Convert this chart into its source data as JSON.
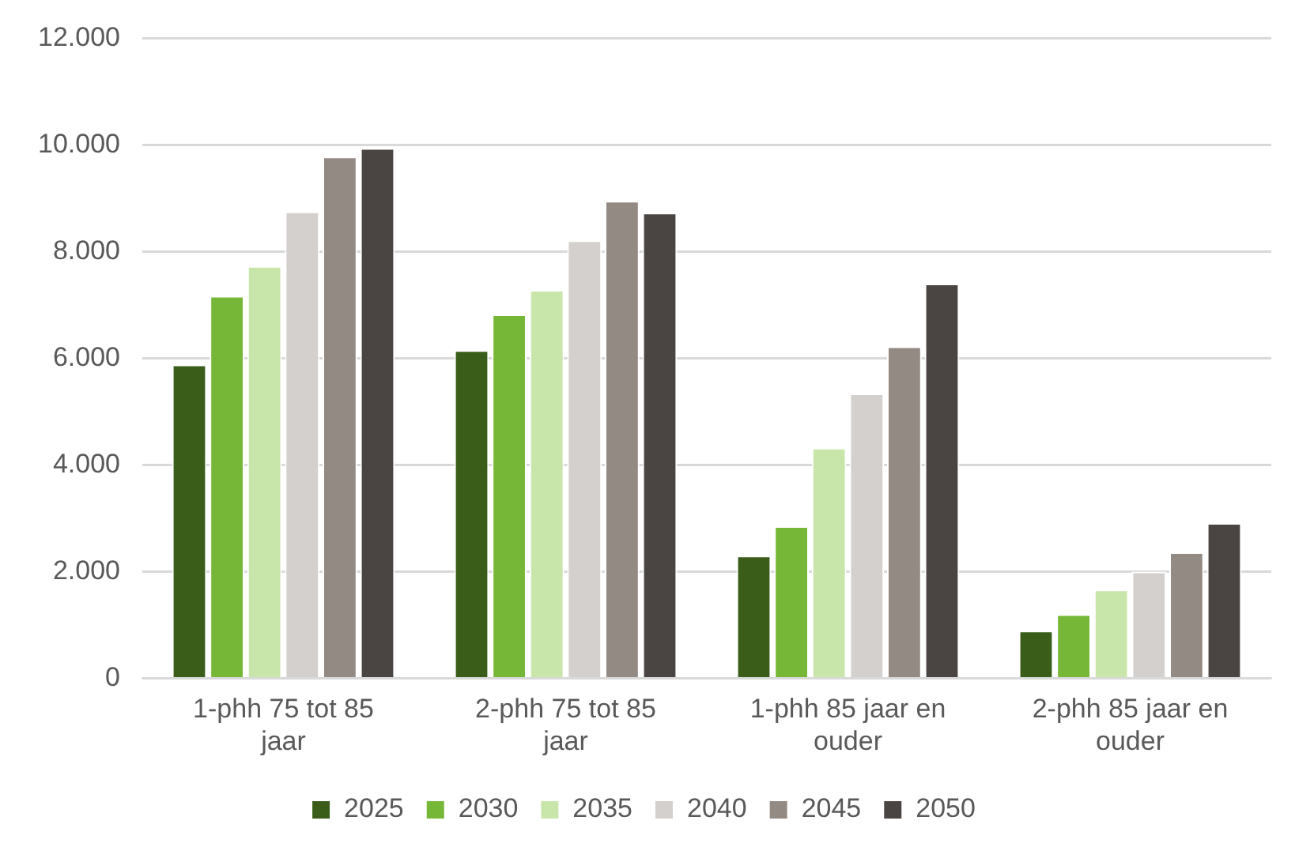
{
  "chart_data": {
    "type": "bar",
    "categories": [
      "1-phh 75 tot 85 jaar",
      "2-phh 75 tot 85 jaar",
      "1-phh 85 jaar en ouder",
      "2-phh 85 jaar en ouder"
    ],
    "series": [
      {
        "name": "2025",
        "color": "#3a5e1a",
        "values": [
          5880,
          6150,
          2300,
          890
        ]
      },
      {
        "name": "2030",
        "color": "#76b737",
        "values": [
          7170,
          6820,
          2850,
          1200
        ]
      },
      {
        "name": "2035",
        "color": "#c9e6aa",
        "values": [
          7730,
          7280,
          4320,
          1660
        ]
      },
      {
        "name": "2040",
        "color": "#d4d0cd",
        "values": [
          8750,
          8210,
          5340,
          2000
        ]
      },
      {
        "name": "2045",
        "color": "#948a84",
        "values": [
          9780,
          8950,
          6220,
          2360
        ]
      },
      {
        "name": "2050",
        "color": "#4a4542",
        "values": [
          9940,
          8730,
          7400,
          2910
        ]
      }
    ],
    "ylim": [
      0,
      12000
    ],
    "yticks": [
      {
        "value": 0,
        "label": "0"
      },
      {
        "value": 2000,
        "label": "2.000"
      },
      {
        "value": 4000,
        "label": "4.000"
      },
      {
        "value": 6000,
        "label": "6.000"
      },
      {
        "value": 8000,
        "label": "8.000"
      },
      {
        "value": 10000,
        "label": "10.000"
      },
      {
        "value": 12000,
        "label": "12.000"
      }
    ],
    "grid": "y",
    "legend": "bottom"
  }
}
